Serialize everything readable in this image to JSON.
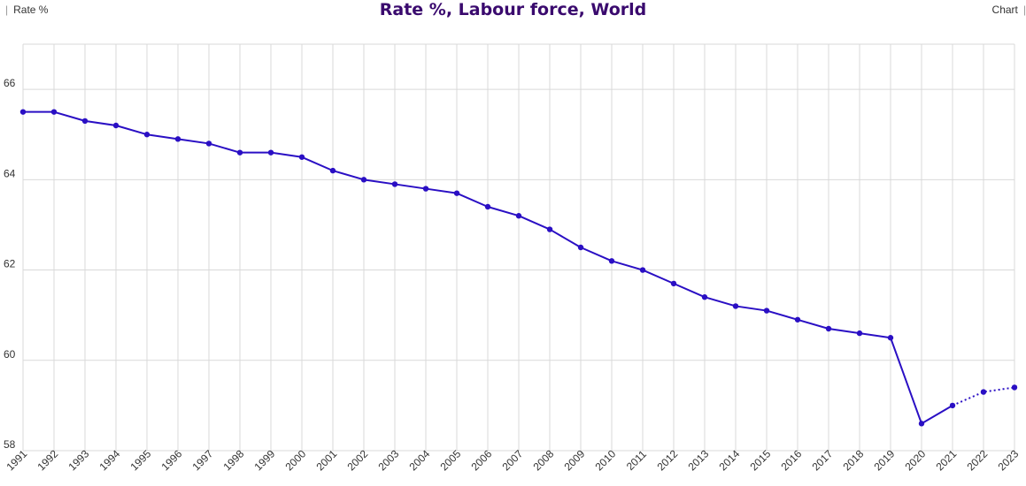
{
  "header": {
    "left_label": "Rate %",
    "title": "Rate %, Labour force, World",
    "right_label": "Chart"
  },
  "colors": {
    "series": "#2a0fc4",
    "title": "#3a0a6e",
    "grid": "#d9d9d9"
  },
  "chart_data": {
    "type": "line",
    "title": "Rate %, Labour force, World",
    "xlabel": "",
    "ylabel": "",
    "x": [
      "1991",
      "1992",
      "1993",
      "1994",
      "1995",
      "1996",
      "1997",
      "1998",
      "1999",
      "2000",
      "2001",
      "2002",
      "2003",
      "2004",
      "2005",
      "2006",
      "2007",
      "2008",
      "2009",
      "2010",
      "2011",
      "2012",
      "2013",
      "2014",
      "2015",
      "2016",
      "2017",
      "2018",
      "2019",
      "2020",
      "2021",
      "2022",
      "2023"
    ],
    "series": [
      {
        "values": [
          65.5,
          65.5,
          65.3,
          65.2,
          65.0,
          64.9,
          64.8,
          64.6,
          64.6,
          64.5,
          64.2,
          64.0,
          63.9,
          63.8,
          63.7,
          63.4,
          63.2,
          62.9,
          62.5,
          62.2,
          62.0,
          61.7,
          61.4,
          61.2,
          61.1,
          60.9,
          60.7,
          60.6,
          60.5,
          58.6,
          59.0,
          59.3,
          59.4
        ],
        "projected_from": "2021"
      }
    ],
    "yticks": [
      58,
      60,
      62,
      64,
      66
    ],
    "ylim": [
      58,
      67
    ],
    "grid": true,
    "legend": "none"
  }
}
